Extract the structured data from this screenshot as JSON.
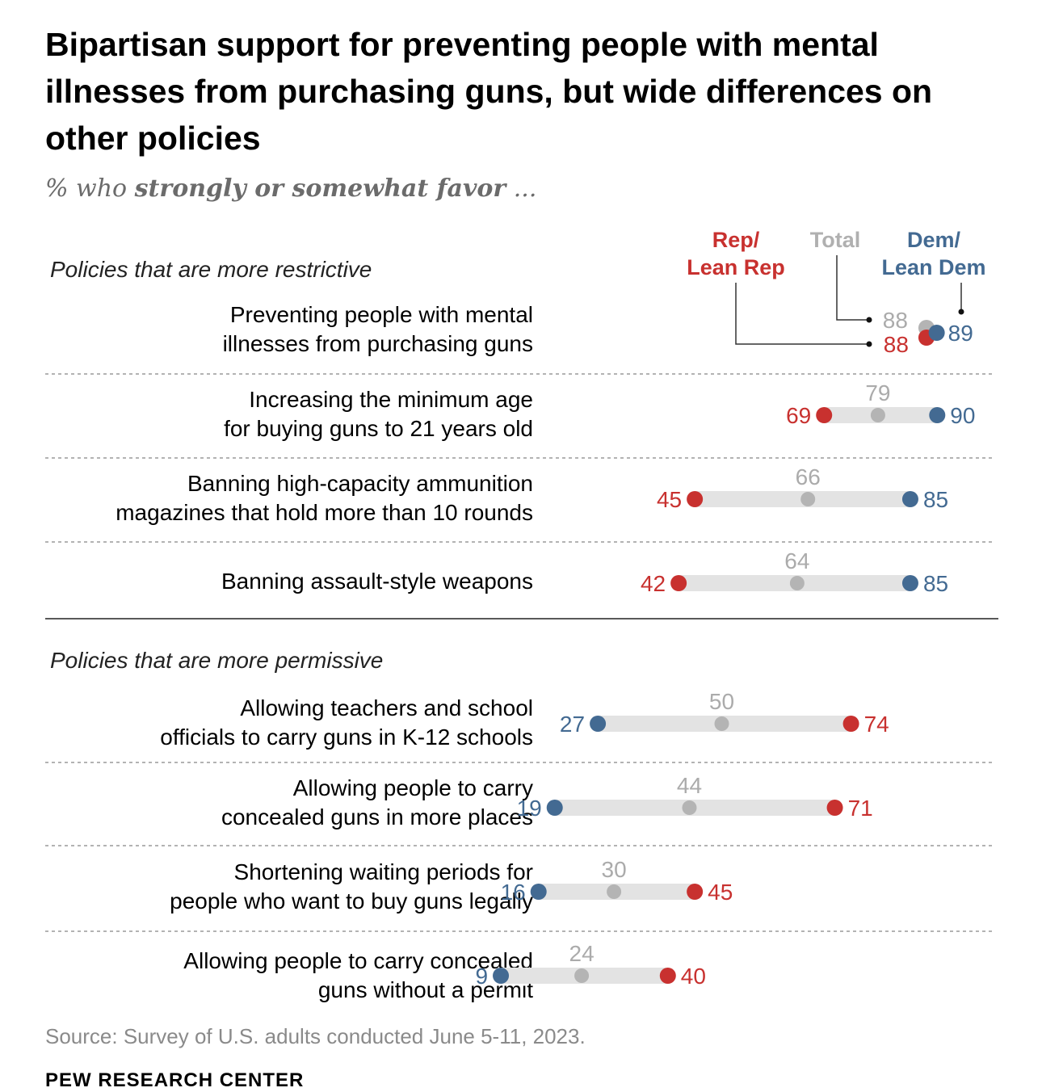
{
  "title": "Bipartisan support for preventing people with mental illnesses from purchasing guns, but wide differences on other policies",
  "subtitle": {
    "prefix": "% who ",
    "emphasis": "strongly or somewhat favor",
    "suffix": " ..."
  },
  "legend": {
    "rep": [
      "Rep/",
      "Lean Rep"
    ],
    "total": "Total",
    "dem": [
      "Dem/",
      "Lean Dem"
    ]
  },
  "colors": {
    "rep": "#c8312f",
    "dem": "#436a92",
    "total": "#b4b4b4",
    "bar": "#e3e3e3",
    "total_text": "#ababab"
  },
  "source": "Source: Survey of U.S. adults conducted June 5-11, 2023.",
  "brand": "PEW RESEARCH CENTER",
  "chart_data": {
    "type": "dot-plot",
    "title": "Bipartisan support for preventing people with mental illnesses from purchasing guns, but wide differences on other policies",
    "xlabel": "% who strongly or somewhat favor",
    "series_names": [
      "Rep/Lean Rep",
      "Total",
      "Dem/Lean Dem"
    ],
    "groups": [
      {
        "label": "Policies that are more restrictive",
        "rows": [
          {
            "label": [
              "Preventing people with mental",
              "illnesses from purchasing guns"
            ],
            "rep": 88,
            "total": 88,
            "dem": 89
          },
          {
            "label": [
              "Increasing the minimum age",
              "for buying guns to 21 years old"
            ],
            "rep": 69,
            "total": 79,
            "dem": 90
          },
          {
            "label": [
              "Banning high-capacity ammunition",
              "magazines that hold more than 10 rounds"
            ],
            "rep": 45,
            "total": 66,
            "dem": 85
          },
          {
            "label": [
              "Banning assault-style weapons"
            ],
            "rep": 42,
            "total": 64,
            "dem": 85
          }
        ]
      },
      {
        "label": "Policies that are more permissive",
        "rows": [
          {
            "label": [
              "Allowing teachers and school",
              "officials to carry guns in K-12 schools"
            ],
            "rep": 74,
            "total": 50,
            "dem": 27
          },
          {
            "label": [
              "Allowing people to carry",
              "concealed guns in more places"
            ],
            "rep": 71,
            "total": 44,
            "dem": 19
          },
          {
            "label": [
              "Shortening waiting periods for",
              "people who want to buy guns legally"
            ],
            "rep": 45,
            "total": 30,
            "dem": 16
          },
          {
            "label": [
              "Allowing people to carry concealed",
              "guns without a permit"
            ],
            "rep": 40,
            "total": 24,
            "dem": 9
          }
        ]
      }
    ]
  }
}
